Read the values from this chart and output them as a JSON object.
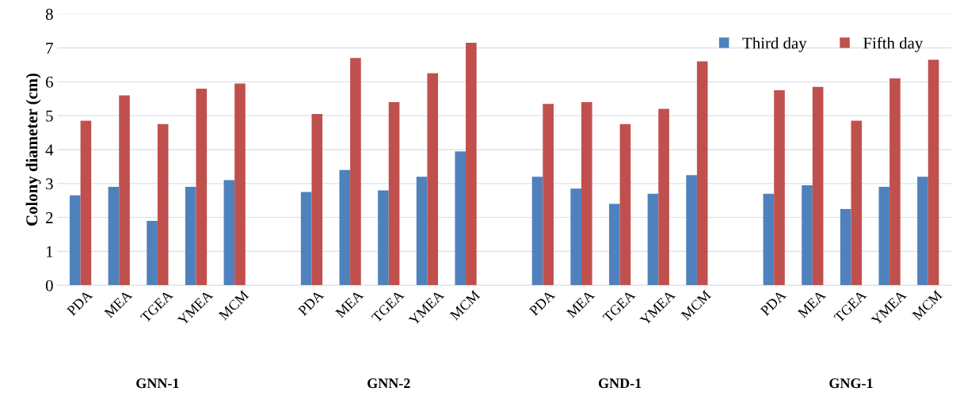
{
  "chart_data": {
    "type": "bar",
    "ylabel": "Colony diameter (cm)",
    "categories": [
      "PDA",
      "MEA",
      "TGEA",
      "YMEA",
      "MCM",
      null,
      "PDA",
      "MEA",
      "TGEA",
      "YMEA",
      "MCM",
      null,
      "PDA",
      "MEA",
      "TGEA",
      "YMEA",
      "MCM",
      null,
      "PDA",
      "MEA",
      "TGEA",
      "YMEA",
      "MCM"
    ],
    "series": [
      {
        "name": "Third day",
        "color": "#4f81bd",
        "values": [
          2.65,
          2.9,
          1.9,
          2.9,
          3.1,
          null,
          2.75,
          3.4,
          2.8,
          3.2,
          3.95,
          null,
          3.2,
          2.85,
          2.4,
          2.7,
          3.25,
          null,
          2.7,
          2.95,
          2.25,
          2.9,
          3.2
        ]
      },
      {
        "name": "Fifth day",
        "color": "#c0504d",
        "values": [
          4.85,
          5.6,
          4.75,
          5.8,
          5.95,
          null,
          5.05,
          6.7,
          5.4,
          6.25,
          7.15,
          null,
          5.35,
          5.4,
          4.75,
          5.2,
          6.6,
          null,
          5.75,
          5.85,
          4.85,
          6.1,
          6.65
        ]
      }
    ],
    "annotations": [
      "GNN-1",
      "GNN-2",
      "GND-1",
      "GNG-1"
    ],
    "ylim": [
      0,
      8
    ],
    "yticks": [
      0,
      1,
      2,
      3,
      4,
      5,
      6,
      7,
      8
    ],
    "grid": "y",
    "legend": "top right"
  }
}
